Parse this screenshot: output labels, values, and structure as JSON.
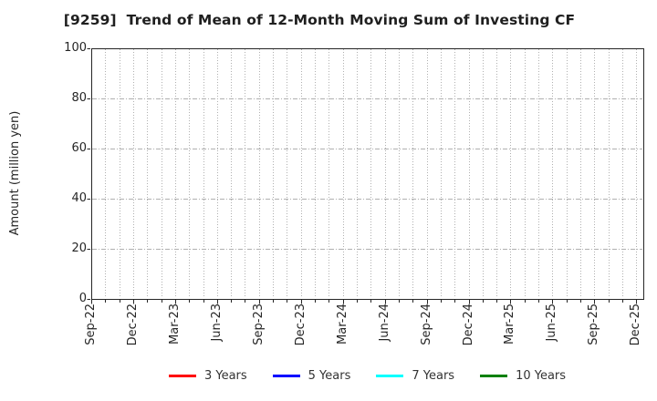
{
  "chart_data": {
    "type": "line",
    "title": "[9259]  Trend of Mean of 12-Month Moving Sum of Investing CF",
    "xlabel": "",
    "ylabel": "Amount (million yen)",
    "ylim": [
      0,
      100
    ],
    "yticks": [
      0,
      20,
      40,
      60,
      80,
      100
    ],
    "x_tick_labels": [
      "Sep-22",
      "Dec-22",
      "Mar-23",
      "Jun-23",
      "Sep-23",
      "Dec-23",
      "Mar-24",
      "Jun-24",
      "Sep-24",
      "Dec-24",
      "Mar-25",
      "Jun-25",
      "Sep-25",
      "Dec-25"
    ],
    "x_major_step_months": 3,
    "x_total_months": 39.5,
    "grid": true,
    "plot_area_empty": true,
    "legend_position": "bottom-center",
    "series": [
      {
        "name": "3 Years",
        "color": "#ff0000",
        "values": []
      },
      {
        "name": "5 Years",
        "color": "#0000ff",
        "values": []
      },
      {
        "name": "7 Years",
        "color": "#00ffff",
        "values": []
      },
      {
        "name": "10 Years",
        "color": "#008000",
        "values": []
      }
    ]
  },
  "colors": {
    "background": "#ffffff",
    "axis": "#262626",
    "grid": "#b0b0b0",
    "text": "#262626"
  }
}
